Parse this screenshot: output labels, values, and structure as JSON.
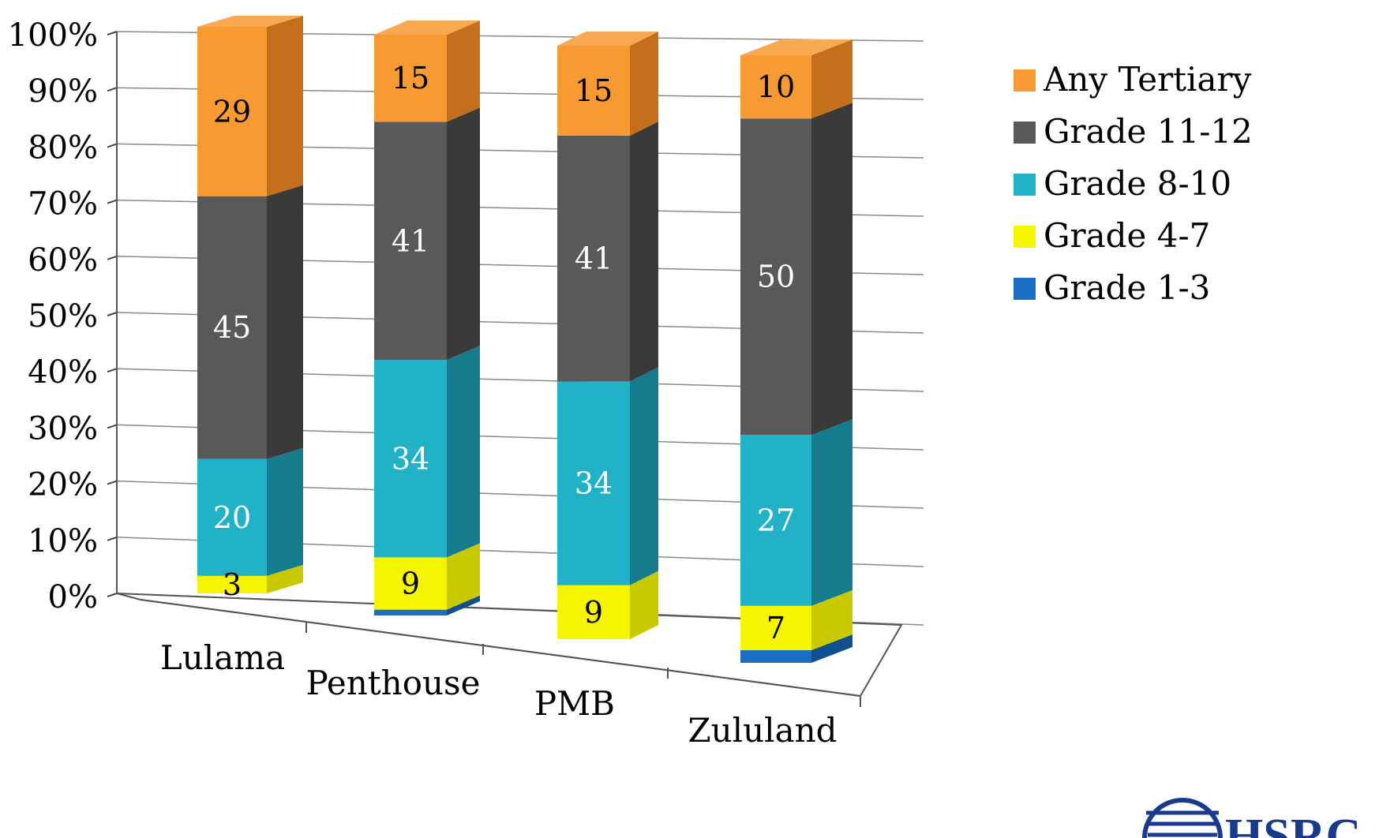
{
  "chart_data": {
    "type": "bar",
    "stacked": true,
    "percent_stacked": true,
    "three_d": true,
    "categories": [
      "Lulama",
      "Penthouse",
      "PMB",
      "Zululand"
    ],
    "series": [
      {
        "name": "Grade 1-3",
        "values": [
          0,
          1,
          0,
          2
        ],
        "labels": [
          "",
          "",
          "",
          ""
        ],
        "color": "#1a6fc4",
        "side": "#11508f",
        "label_color": "#ffffff"
      },
      {
        "name": "Grade 4-7",
        "values": [
          3,
          9,
          9,
          7
        ],
        "labels": [
          "3",
          "9",
          "9",
          "7"
        ],
        "color": "#f5f500",
        "side": "#c9c900",
        "label_color": "#000000"
      },
      {
        "name": "Grade 8-10",
        "values": [
          20,
          34,
          34,
          27
        ],
        "labels": [
          "20",
          "34",
          "34",
          "27"
        ],
        "color": "#22b2c8",
        "side": "#167c8d",
        "label_color": "#ffffff"
      },
      {
        "name": "Grade 11-12",
        "values": [
          45,
          41,
          41,
          50
        ],
        "labels": [
          "45",
          "41",
          "41",
          "50"
        ],
        "color": "#595959",
        "side": "#3a3a3a",
        "label_color": "#ffffff"
      },
      {
        "name": "Any Tertiary",
        "values": [
          29,
          15,
          15,
          10
        ],
        "labels": [
          "29",
          "15",
          "15",
          "10"
        ],
        "color": "#f89a32",
        "side": "#c36f1c",
        "label_color": "#000000"
      }
    ],
    "y_ticks": [
      "0%",
      "10%",
      "20%",
      "30%",
      "40%",
      "50%",
      "60%",
      "70%",
      "80%",
      "90%",
      "100%"
    ],
    "ylim": [
      0,
      100
    ],
    "grid": true,
    "legend_position": "right",
    "legend_order": [
      "Any Tertiary",
      "Grade 11-12",
      "Grade 8-10",
      "Grade 4-7",
      "Grade 1-3"
    ]
  },
  "logo": {
    "text": "HSRC",
    "color": "#1a3a8c"
  }
}
